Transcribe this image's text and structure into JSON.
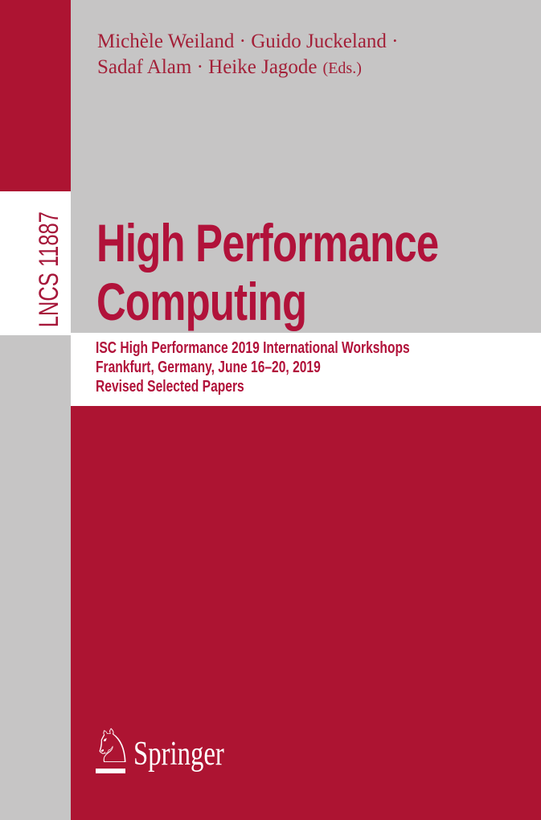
{
  "cover": {
    "series": {
      "label": "LNCS 11887"
    },
    "editors": {
      "line1": "Michèle Weiland · Guido Juckeland ·",
      "line2": "Sadaf Alam · Heike Jagode",
      "eds_suffix": "(Eds.)"
    },
    "title": {
      "line1": "High Performance",
      "line2": "Computing"
    },
    "subtitle": {
      "line1": "ISC High Performance 2019 International Workshops",
      "line2": "Frankfurt, Germany, June 16–20, 2019",
      "line3": "Revised Selected Papers"
    },
    "publisher": {
      "name": "Springer",
      "horse_glyph": "♘"
    },
    "colors": {
      "block_red": "#AD1432",
      "background_gray": "#C6C5C5",
      "band_white": "#FFFFFF",
      "title_red": "#B1123A",
      "editors_red": "#A32038",
      "lncs_red": "#A6173A",
      "logo_white": "#FFFFFF"
    }
  }
}
